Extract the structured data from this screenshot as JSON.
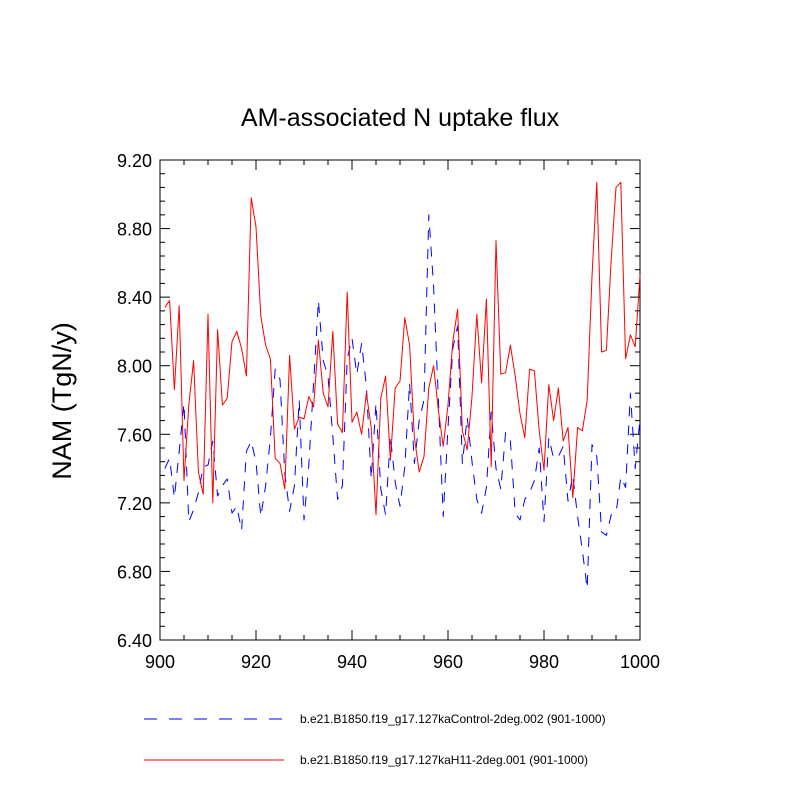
{
  "chart_data": {
    "type": "line",
    "title": "AM-associated N uptake flux",
    "xlabel": "",
    "ylabel": "NAM  (TgN/y)",
    "xlim": [
      900,
      1000
    ],
    "ylim": [
      6.4,
      9.2
    ],
    "xticks": [
      900,
      920,
      940,
      960,
      980,
      1000
    ],
    "xtick_labels": [
      "900",
      "920",
      "940",
      "960",
      "980",
      "1000"
    ],
    "yticks": [
      6.4,
      6.8,
      7.2,
      7.6,
      8.0,
      8.4,
      8.8,
      9.2
    ],
    "ytick_labels": [
      "6.40",
      "6.80",
      "7.20",
      "7.60",
      "8.00",
      "8.40",
      "8.80",
      "9.20"
    ],
    "grid": false,
    "legend_position": "bottom",
    "x": [
      901,
      902,
      903,
      904,
      905,
      906,
      907,
      908,
      909,
      910,
      911,
      912,
      913,
      914,
      915,
      916,
      917,
      918,
      919,
      920,
      921,
      922,
      923,
      924,
      925,
      926,
      927,
      928,
      929,
      930,
      931,
      932,
      933,
      934,
      935,
      936,
      937,
      938,
      939,
      940,
      941,
      942,
      943,
      944,
      945,
      946,
      947,
      948,
      949,
      950,
      951,
      952,
      953,
      954,
      955,
      956,
      957,
      958,
      959,
      960,
      961,
      962,
      963,
      964,
      965,
      966,
      967,
      968,
      969,
      970,
      971,
      972,
      973,
      974,
      975,
      976,
      977,
      978,
      979,
      980,
      981,
      982,
      983,
      984,
      985,
      986,
      987,
      988,
      989,
      990,
      991,
      992,
      993,
      994,
      995,
      996,
      997,
      998,
      999,
      1000
    ],
    "series": [
      {
        "name": "b.e21.B1850.f19_g17.127kaControl-2deg.002 (901-1000)",
        "color": "#0000ff",
        "style": "dashed",
        "values": [
          7.4,
          7.46,
          7.23,
          7.5,
          7.78,
          7.09,
          7.16,
          7.26,
          7.41,
          7.42,
          7.56,
          7.24,
          7.3,
          7.34,
          7.14,
          7.18,
          7.04,
          7.5,
          7.56,
          7.44,
          7.12,
          7.3,
          7.58,
          7.98,
          7.92,
          7.37,
          7.15,
          7.3,
          7.8,
          7.1,
          7.42,
          7.9,
          8.38,
          8.03,
          7.94,
          7.59,
          7.22,
          7.3,
          8.04,
          8.16,
          7.95,
          8.13,
          7.88,
          7.34,
          7.78,
          7.28,
          7.13,
          7.59,
          7.32,
          7.18,
          7.41,
          7.9,
          7.43,
          7.68,
          7.8,
          8.88,
          8.46,
          7.8,
          7.12,
          7.64,
          8.1,
          8.23,
          7.43,
          7.7,
          7.44,
          7.22,
          7.14,
          7.29,
          7.73,
          7.4,
          7.28,
          7.61,
          7.56,
          7.14,
          7.1,
          7.22,
          7.26,
          7.33,
          7.52,
          7.09,
          7.58,
          7.46,
          7.47,
          7.53,
          7.21,
          7.36,
          7.12,
          6.92,
          6.7,
          7.54,
          7.47,
          7.03,
          7.01,
          7.13,
          7.14,
          7.35,
          7.29,
          7.84,
          7.4,
          7.69
        ]
      },
      {
        "name": "b.e21.B1850.f19_g17.127kaH11-2deg.001 (901-1000)",
        "color": "#ff0000",
        "style": "solid",
        "values": [
          8.34,
          8.38,
          7.86,
          8.35,
          7.33,
          7.77,
          8.03,
          7.38,
          7.25,
          8.3,
          7.2,
          8.21,
          7.77,
          7.81,
          8.14,
          8.2,
          8.1,
          7.94,
          8.98,
          8.81,
          8.29,
          8.12,
          8.04,
          7.46,
          7.43,
          7.28,
          8.06,
          7.63,
          7.7,
          7.69,
          7.82,
          7.76,
          8.15,
          7.84,
          7.76,
          8.2,
          7.66,
          7.61,
          8.43,
          7.67,
          7.73,
          7.6,
          7.84,
          7.64,
          7.13,
          7.81,
          7.94,
          7.45,
          7.87,
          7.91,
          8.28,
          8.12,
          7.58,
          7.38,
          7.47,
          7.87,
          8.0,
          7.74,
          7.53,
          7.77,
          8.14,
          8.33,
          7.62,
          7.51,
          7.82,
          8.3,
          7.9,
          8.39,
          7.41,
          8.73,
          7.95,
          7.96,
          8.12,
          7.94,
          7.72,
          7.58,
          7.98,
          7.97,
          7.62,
          7.39,
          7.89,
          7.68,
          7.87,
          7.56,
          7.64,
          7.23,
          7.64,
          7.62,
          7.8,
          8.52,
          9.07,
          8.08,
          8.09,
          8.62,
          9.04,
          9.07,
          8.04,
          8.18,
          8.11,
          8.53
        ]
      }
    ]
  }
}
